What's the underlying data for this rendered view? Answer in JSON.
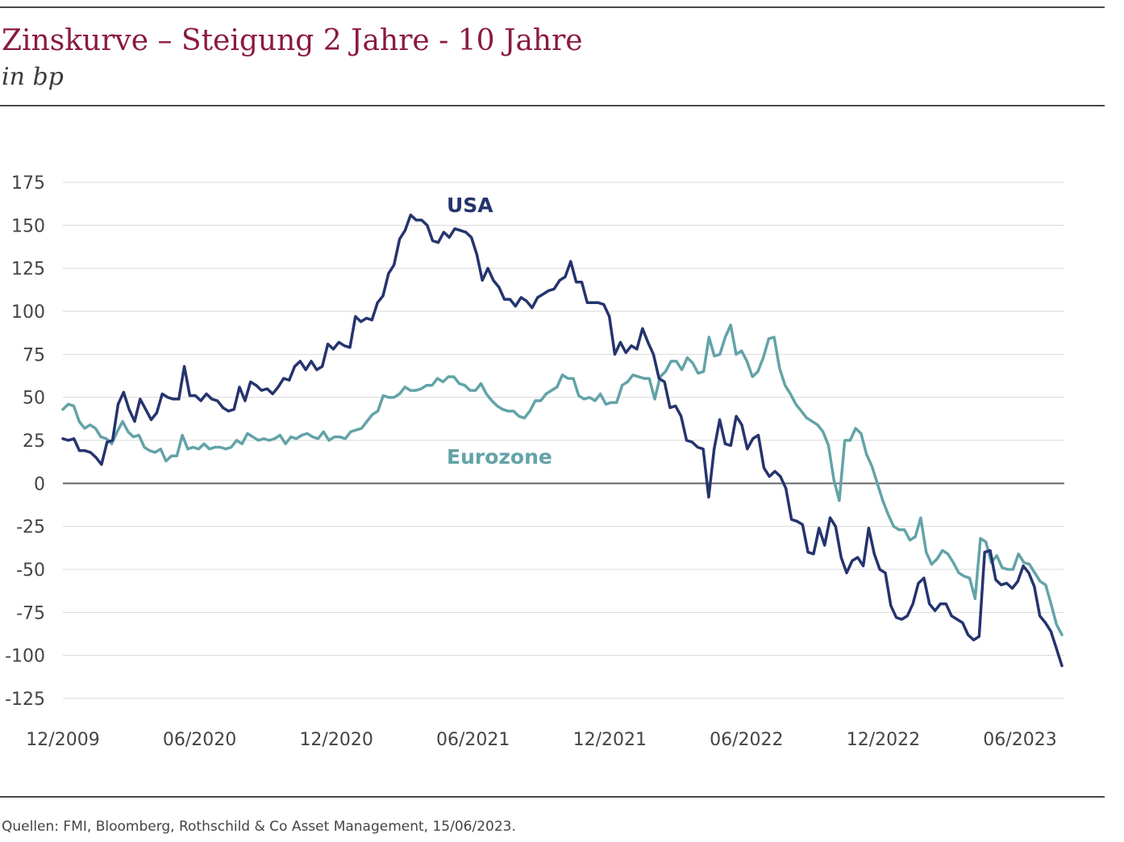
{
  "header": {
    "title": "Zinskurve – Steigung 2 Jahre - 10 Jahre",
    "subtitle": "in bp"
  },
  "footer": {
    "source": "Quellen: FMI, Bloomberg, Rothschild & Co Asset Management, 15/06/2023."
  },
  "chart_data": {
    "type": "line",
    "title": "Zinskurve – Steigung 2 Jahre - 10 Jahre",
    "subtitle": "in bp",
    "ylim": [
      -125,
      175
    ],
    "yticks": [
      175,
      150,
      125,
      100,
      75,
      50,
      25,
      0,
      -25,
      -50,
      -75,
      -100,
      -125
    ],
    "ytick_labels": [
      "175",
      "150",
      "125",
      "100",
      "75",
      "50",
      "25",
      "0",
      "-25",
      "-50",
      "-75",
      "-100",
      "-125"
    ],
    "xtick_labels": [
      "12/2009",
      "06/2020",
      "12/2020",
      "06/2021",
      "12/2021",
      "06/2022",
      "12/2022",
      "06/2023"
    ],
    "grid": true,
    "colors": {
      "USA": "#25346e",
      "Eurozone": "#63a3a8",
      "grid": "#d9d9d9",
      "zero": "#666666"
    },
    "series": [
      {
        "name": "USA",
        "values": [
          26,
          25,
          26,
          19,
          19,
          18,
          15,
          11,
          24,
          25,
          46,
          53,
          43,
          36,
          49,
          43,
          37,
          41,
          52,
          50,
          49,
          49,
          68,
          51,
          51,
          48,
          52,
          49,
          48,
          44,
          42,
          43,
          56,
          48,
          59,
          57,
          54,
          55,
          52,
          56,
          61,
          60,
          68,
          71,
          66,
          71,
          66,
          68,
          81,
          78,
          82,
          80,
          79,
          97,
          94,
          96,
          95,
          105,
          109,
          122,
          127,
          142,
          147,
          156,
          153,
          153,
          150,
          141,
          140,
          146,
          143,
          148,
          147,
          146,
          143,
          133,
          118,
          125,
          118,
          114,
          107,
          107,
          103,
          108,
          106,
          102,
          108,
          110,
          112,
          113,
          118,
          120,
          129,
          117,
          117,
          105,
          105,
          105,
          104,
          97,
          75,
          82,
          76,
          80,
          78,
          90,
          82,
          75,
          61,
          59,
          44,
          45,
          39,
          25,
          24,
          21,
          20,
          -8,
          20,
          37,
          23,
          22,
          39,
          34,
          20,
          26,
          28,
          9,
          4,
          7,
          4,
          -3,
          -21,
          -22,
          -24,
          -40,
          -41,
          -26,
          -36,
          -20,
          -25,
          -43,
          -52,
          -45,
          -43,
          -48,
          -26,
          -41,
          -50,
          -52,
          -71,
          -78,
          -79,
          -77,
          -70,
          -58,
          -55,
          -70,
          -74,
          -70,
          -70,
          -77,
          -79,
          -81,
          -88,
          -91,
          -89,
          -40,
          -39,
          -56,
          -59,
          -58,
          -61,
          -57,
          -48,
          -52,
          -60,
          -77,
          -81,
          -86,
          -96,
          -106
        ]
      },
      {
        "name": "Eurozone",
        "values": [
          43,
          46,
          45,
          36,
          32,
          34,
          32,
          27,
          26,
          23,
          30,
          36,
          30,
          27,
          28,
          21,
          19,
          18,
          20,
          13,
          16,
          16,
          28,
          20,
          21,
          20,
          23,
          20,
          21,
          21,
          20,
          21,
          25,
          23,
          29,
          27,
          25,
          26,
          25,
          26,
          28,
          23,
          27,
          26,
          28,
          29,
          27,
          26,
          30,
          25,
          27,
          27,
          26,
          30,
          31,
          32,
          36,
          40,
          42,
          51,
          50,
          50,
          52,
          56,
          54,
          54,
          55,
          57,
          57,
          61,
          59,
          62,
          62,
          58,
          57,
          54,
          54,
          58,
          52,
          48,
          45,
          43,
          42,
          42,
          39,
          38,
          42,
          48,
          48,
          52,
          54,
          56,
          63,
          61,
          61,
          51,
          49,
          50,
          48,
          52,
          46,
          47,
          47,
          57,
          59,
          63,
          62,
          61,
          61,
          49,
          62,
          65,
          71,
          71,
          66,
          73,
          70,
          64,
          65,
          85,
          74,
          75,
          85,
          92,
          75,
          77,
          71,
          62,
          65,
          73,
          84,
          85,
          67,
          57,
          52,
          46,
          42,
          38,
          36,
          34,
          30,
          22,
          2,
          -10,
          25,
          25,
          32,
          29,
          17,
          10,
          0,
          -10,
          -18,
          -25,
          -27,
          -27,
          -33,
          -31,
          -20,
          -40,
          -47,
          -44,
          -39,
          -41,
          -46,
          -52,
          -54,
          -55,
          -67,
          -32,
          -34,
          -46,
          -42,
          -49,
          -50,
          -50,
          -41,
          -46,
          -47,
          -52,
          -57,
          -59,
          -70,
          -82,
          -88
        ]
      }
    ],
    "annotations": [
      "USA",
      "Eurozone"
    ]
  }
}
